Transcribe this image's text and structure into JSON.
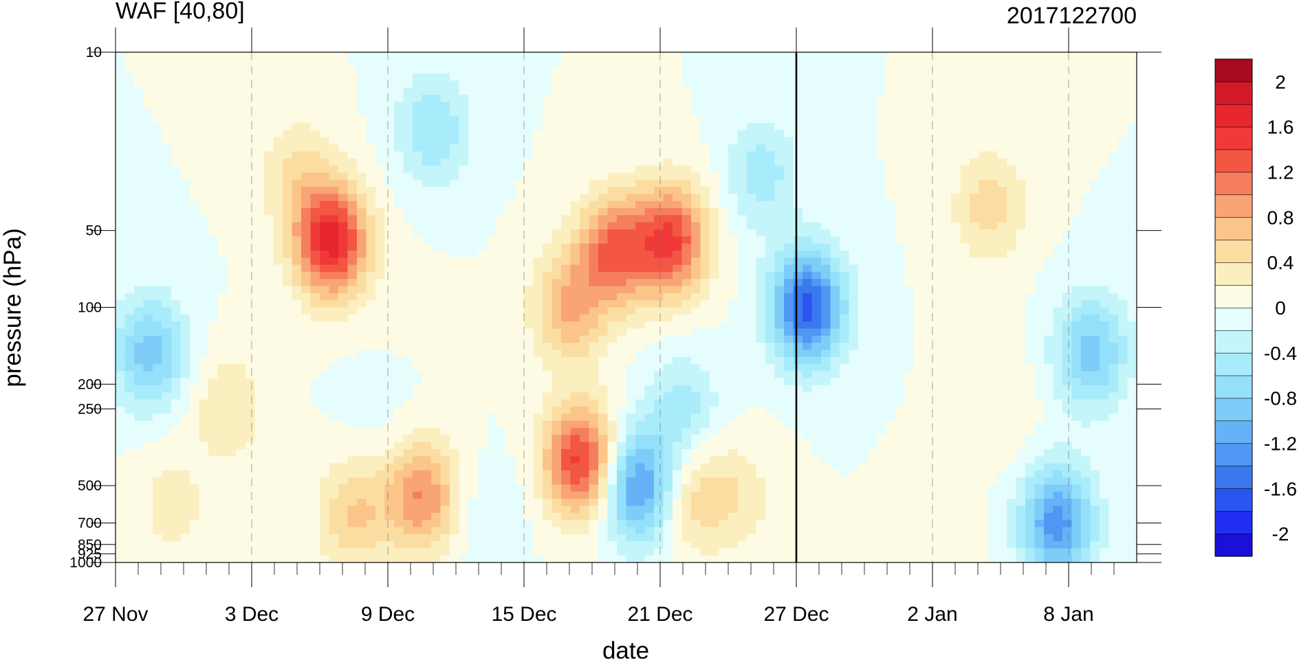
{
  "chart_data": {
    "type": "heatmap",
    "title": "WAF [40,80]",
    "subtitle": "2017122700",
    "xlabel": "date",
    "ylabel": "pressure (hPa)",
    "x_ticks": [
      "27 Nov",
      "3 Dec",
      "9 Dec",
      "15 Dec",
      "21 Dec",
      "27 Dec",
      "2 Jan",
      "8 Jan"
    ],
    "x_tick_days": [
      0,
      6,
      12,
      18,
      24,
      30,
      36,
      42
    ],
    "x_range_days": [
      0,
      45
    ],
    "marked_date_day": 30,
    "y_ticks": [
      10,
      50,
      100,
      200,
      250,
      500,
      700,
      850,
      925,
      1000
    ],
    "y_tick_labels": [
      "10",
      "50",
      "100",
      "200",
      "250",
      "500",
      "700",
      "850",
      "925",
      "1000"
    ],
    "y_scale": "log",
    "y_range": [
      1000,
      10
    ],
    "colorbar": {
      "levels": [
        -2.2,
        -2.0,
        -1.8,
        -1.6,
        -1.4,
        -1.2,
        -1.0,
        -0.8,
        -0.6,
        -0.4,
        -0.2,
        0,
        0.2,
        0.4,
        0.6,
        0.8,
        1.0,
        1.2,
        1.4,
        1.6,
        1.8,
        2.0,
        2.2
      ],
      "colors": [
        "#1a10d8",
        "#1f2ef2",
        "#2a55f0",
        "#3a78ee",
        "#4f97f2",
        "#66b2f6",
        "#7ecdf8",
        "#94e0fa",
        "#a8ecfb",
        "#c4f5fb",
        "#e6fdfd",
        "#fdfbe4",
        "#fbefc0",
        "#fbdda2",
        "#fbc58a",
        "#f9a474",
        "#f57e5e",
        "#f45644",
        "#f03a3a",
        "#e8262e",
        "#d21a2a",
        "#a80a22"
      ],
      "tick_labels": [
        "2",
        "1.6",
        "1.2",
        "0.8",
        "0.4",
        "0",
        "-0.4",
        "-0.8",
        "-1.2",
        "-1.6",
        "-2"
      ],
      "tick_values": [
        2,
        1.6,
        1.2,
        0.8,
        0.4,
        0,
        -0.4,
        -0.8,
        -1.2,
        -1.6,
        -2
      ]
    },
    "features": [
      {
        "day": 1.5,
        "p": 150,
        "value": -0.9
      },
      {
        "day": 2.5,
        "p": 600,
        "value": 0.3
      },
      {
        "day": 5.0,
        "p": 250,
        "value": 0.4
      },
      {
        "day": 9.5,
        "p": 55,
        "value": 1.7
      },
      {
        "day": 8.0,
        "p": 30,
        "value": 0.4
      },
      {
        "day": 10.5,
        "p": 650,
        "value": 0.6
      },
      {
        "day": 12.5,
        "p": 100,
        "value": 0.05
      },
      {
        "day": 11.5,
        "p": 250,
        "value": -0.1
      },
      {
        "day": 13.5,
        "p": 550,
        "value": 1.0
      },
      {
        "day": 14.0,
        "p": 20,
        "value": -0.6
      },
      {
        "day": 16.5,
        "p": 700,
        "value": -0.2
      },
      {
        "day": 20.5,
        "p": 400,
        "value": 1.5
      },
      {
        "day": 20.0,
        "p": 100,
        "value": 0.8
      },
      {
        "day": 22.0,
        "p": 60,
        "value": 1.2
      },
      {
        "day": 24.5,
        "p": 55,
        "value": 1.4
      },
      {
        "day": 23.0,
        "p": 500,
        "value": -1.3
      },
      {
        "day": 25.5,
        "p": 550,
        "value": 0.5
      },
      {
        "day": 27.5,
        "p": 550,
        "value": 0.3
      },
      {
        "day": 25.0,
        "p": 250,
        "value": -0.5
      },
      {
        "day": 30.5,
        "p": 100,
        "value": -1.7
      },
      {
        "day": 28.5,
        "p": 30,
        "value": -0.5
      },
      {
        "day": 36.5,
        "p": 900,
        "value": 0.2
      },
      {
        "day": 38.5,
        "p": 40,
        "value": 0.5
      },
      {
        "day": 39.0,
        "p": 250,
        "value": 0.2
      },
      {
        "day": 43.0,
        "p": 150,
        "value": -0.9
      },
      {
        "day": 41.5,
        "p": 700,
        "value": -1.3
      }
    ]
  }
}
